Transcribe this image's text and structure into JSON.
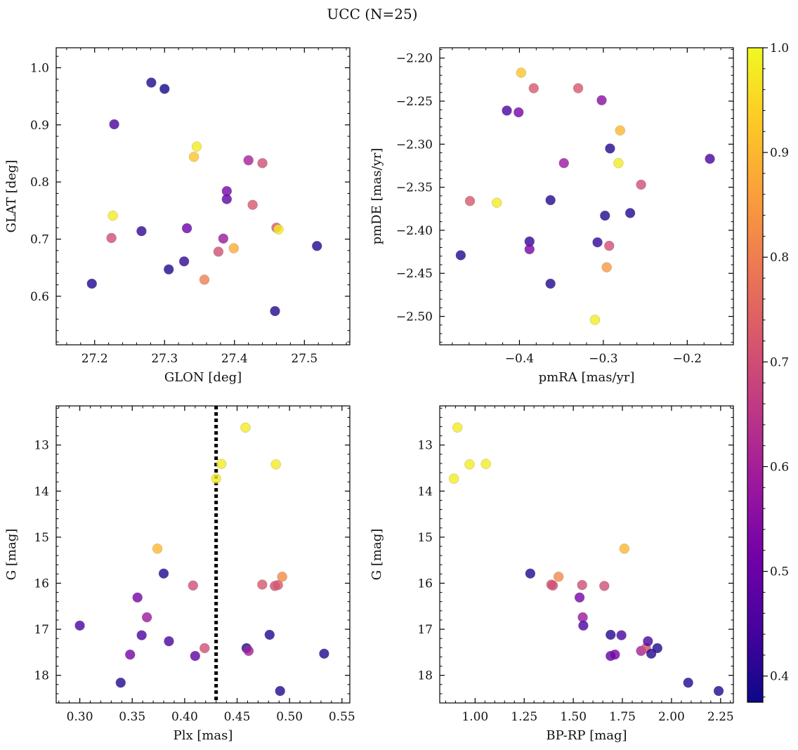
{
  "title": "UCC (N=25)",
  "colors": {
    "cmap": [
      "#0d0887",
      "#46039f",
      "#7201a8",
      "#9c179e",
      "#bd3786",
      "#d8576b",
      "#ed7953",
      "#fb9f3a",
      "#fdca26",
      "#f0f921"
    ],
    "point_alpha": 0.8,
    "point_edge": "#777777",
    "vline": "#000000"
  },
  "colorbar": {
    "range": [
      0.375,
      1.0
    ],
    "ticks": [
      0.4,
      0.5,
      0.6,
      0.7,
      0.8,
      0.9,
      1.0
    ],
    "tick_labels": [
      "0.4",
      "0.5",
      "0.6",
      "0.7",
      "0.8",
      "0.9",
      "1.0"
    ]
  },
  "chart_data": [
    {
      "type": "scatter",
      "xlabel": "GLON [deg]",
      "ylabel": "GLAT [deg]",
      "xlim": [
        27.145,
        27.565
      ],
      "ylim": [
        0.515,
        1.035
      ],
      "xticks": [
        27.2,
        27.3,
        27.4,
        27.5
      ],
      "xtick_labels": [
        "27.2",
        "27.3",
        "27.4",
        "27.5"
      ],
      "yticks": [
        0.6,
        0.7,
        0.8,
        0.9,
        1.0
      ],
      "ytick_labels": [
        "0.6",
        "0.7",
        "0.8",
        "0.9",
        "1.0"
      ],
      "y_inverted": false,
      "points": [
        {
          "x": 27.196,
          "y": 0.622,
          "c": 0.4
        },
        {
          "x": 27.224,
          "y": 0.702,
          "c": 0.7
        },
        {
          "x": 27.226,
          "y": 0.741,
          "c": 0.98
        },
        {
          "x": 27.228,
          "y": 0.901,
          "c": 0.45
        },
        {
          "x": 27.267,
          "y": 0.714,
          "c": 0.42
        },
        {
          "x": 27.281,
          "y": 0.974,
          "c": 0.4
        },
        {
          "x": 27.3,
          "y": 0.963,
          "c": 0.38
        },
        {
          "x": 27.306,
          "y": 0.647,
          "c": 0.4
        },
        {
          "x": 27.328,
          "y": 0.661,
          "c": 0.42
        },
        {
          "x": 27.332,
          "y": 0.719,
          "c": 0.5
        },
        {
          "x": 27.342,
          "y": 0.844,
          "c": 0.92
        },
        {
          "x": 27.346,
          "y": 0.862,
          "c": 0.98
        },
        {
          "x": 27.357,
          "y": 0.629,
          "c": 0.8
        },
        {
          "x": 27.377,
          "y": 0.678,
          "c": 0.7
        },
        {
          "x": 27.384,
          "y": 0.701,
          "c": 0.58
        },
        {
          "x": 27.389,
          "y": 0.784,
          "c": 0.52
        },
        {
          "x": 27.389,
          "y": 0.77,
          "c": 0.48
        },
        {
          "x": 27.399,
          "y": 0.684,
          "c": 0.88
        },
        {
          "x": 27.42,
          "y": 0.838,
          "c": 0.6
        },
        {
          "x": 27.426,
          "y": 0.76,
          "c": 0.72
        },
        {
          "x": 27.44,
          "y": 0.833,
          "c": 0.7
        },
        {
          "x": 27.458,
          "y": 0.574,
          "c": 0.4
        },
        {
          "x": 27.46,
          "y": 0.72,
          "c": 0.72
        },
        {
          "x": 27.463,
          "y": 0.717,
          "c": 0.98
        },
        {
          "x": 27.518,
          "y": 0.688,
          "c": 0.4
        }
      ]
    },
    {
      "type": "scatter",
      "xlabel": "pmRA [mas/yr]",
      "ylabel": "pmDE [mas/yr]",
      "xlim": [
        -0.495,
        -0.145
      ],
      "ylim": [
        -2.533,
        -2.188
      ],
      "xticks": [
        -0.4,
        -0.3,
        -0.2
      ],
      "xtick_labels": [
        "−0.4",
        "−0.3",
        "−0.2"
      ],
      "yticks": [
        -2.5,
        -2.45,
        -2.4,
        -2.35,
        -2.3,
        -2.25,
        -2.2
      ],
      "ytick_labels": [
        "−2.50",
        "−2.45",
        "−2.40",
        "−2.35",
        "−2.30",
        "−2.25",
        "−2.20"
      ],
      "y_inverted": false,
      "points": [
        {
          "x": -0.47,
          "y": -2.429,
          "c": 0.4
        },
        {
          "x": -0.459,
          "y": -2.366,
          "c": 0.72
        },
        {
          "x": -0.427,
          "y": -2.368,
          "c": 0.98
        },
        {
          "x": -0.415,
          "y": -2.261,
          "c": 0.45
        },
        {
          "x": -0.401,
          "y": -2.263,
          "c": 0.52
        },
        {
          "x": -0.398,
          "y": -2.217,
          "c": 0.92
        },
        {
          "x": -0.388,
          "y": -2.413,
          "c": 0.42
        },
        {
          "x": -0.388,
          "y": -2.422,
          "c": 0.52
        },
        {
          "x": -0.383,
          "y": -2.235,
          "c": 0.72
        },
        {
          "x": -0.363,
          "y": -2.365,
          "c": 0.4
        },
        {
          "x": -0.363,
          "y": -2.462,
          "c": 0.4
        },
        {
          "x": -0.347,
          "y": -2.322,
          "c": 0.58
        },
        {
          "x": -0.33,
          "y": -2.235,
          "c": 0.72
        },
        {
          "x": -0.31,
          "y": -2.504,
          "c": 0.98
        },
        {
          "x": -0.307,
          "y": -2.414,
          "c": 0.42
        },
        {
          "x": -0.302,
          "y": -2.249,
          "c": 0.55
        },
        {
          "x": -0.298,
          "y": -2.383,
          "c": 0.4
        },
        {
          "x": -0.296,
          "y": -2.443,
          "c": 0.85
        },
        {
          "x": -0.293,
          "y": -2.418,
          "c": 0.7
        },
        {
          "x": -0.292,
          "y": -2.305,
          "c": 0.4
        },
        {
          "x": -0.282,
          "y": -2.322,
          "c": 0.98
        },
        {
          "x": -0.28,
          "y": -2.284,
          "c": 0.9
        },
        {
          "x": -0.268,
          "y": -2.38,
          "c": 0.4
        },
        {
          "x": -0.255,
          "y": -2.347,
          "c": 0.7
        },
        {
          "x": -0.173,
          "y": -2.317,
          "c": 0.45
        }
      ]
    },
    {
      "type": "scatter",
      "xlabel": "Plx [mas]",
      "ylabel": "G [mag]",
      "xlim": [
        0.2775,
        0.5575
      ],
      "ylim": [
        18.6,
        12.15
      ],
      "xticks": [
        0.3,
        0.35,
        0.4,
        0.45,
        0.5,
        0.55
      ],
      "xtick_labels": [
        "0.30",
        "0.35",
        "0.40",
        "0.45",
        "0.50",
        "0.55"
      ],
      "yticks": [
        13,
        14,
        15,
        16,
        17,
        18
      ],
      "ytick_labels": [
        "13",
        "14",
        "15",
        "16",
        "17",
        "18"
      ],
      "y_inverted": true,
      "vline": {
        "x": 0.43
      },
      "points": [
        {
          "x": 0.3,
          "y": 16.92,
          "c": 0.45
        },
        {
          "x": 0.339,
          "y": 18.16,
          "c": 0.4
        },
        {
          "x": 0.348,
          "y": 17.55,
          "c": 0.52
        },
        {
          "x": 0.355,
          "y": 16.31,
          "c": 0.52
        },
        {
          "x": 0.359,
          "y": 17.13,
          "c": 0.45
        },
        {
          "x": 0.364,
          "y": 16.74,
          "c": 0.58
        },
        {
          "x": 0.374,
          "y": 15.25,
          "c": 0.9
        },
        {
          "x": 0.38,
          "y": 15.79,
          "c": 0.4
        },
        {
          "x": 0.385,
          "y": 17.26,
          "c": 0.45
        },
        {
          "x": 0.408,
          "y": 16.05,
          "c": 0.7
        },
        {
          "x": 0.41,
          "y": 17.58,
          "c": 0.48
        },
        {
          "x": 0.419,
          "y": 17.41,
          "c": 0.7
        },
        {
          "x": 0.43,
          "y": 13.73,
          "c": 0.98
        },
        {
          "x": 0.435,
          "y": 13.41,
          "c": 0.98
        },
        {
          "x": 0.458,
          "y": 12.62,
          "c": 0.98
        },
        {
          "x": 0.459,
          "y": 17.41,
          "c": 0.4
        },
        {
          "x": 0.461,
          "y": 17.47,
          "c": 0.6
        },
        {
          "x": 0.474,
          "y": 16.03,
          "c": 0.72
        },
        {
          "x": 0.481,
          "y": 17.12,
          "c": 0.4
        },
        {
          "x": 0.486,
          "y": 16.06,
          "c": 0.7
        },
        {
          "x": 0.487,
          "y": 13.42,
          "c": 0.98
        },
        {
          "x": 0.489,
          "y": 16.04,
          "c": 0.72
        },
        {
          "x": 0.491,
          "y": 18.34,
          "c": 0.4
        },
        {
          "x": 0.493,
          "y": 15.86,
          "c": 0.82
        },
        {
          "x": 0.533,
          "y": 17.53,
          "c": 0.4
        }
      ]
    },
    {
      "type": "scatter",
      "xlabel": "BP-RP [mag]",
      "ylabel": "G [mag]",
      "xlim": [
        0.82,
        2.315
      ],
      "ylim": [
        18.6,
        12.15
      ],
      "xticks": [
        1.0,
        1.25,
        1.5,
        1.75,
        2.0,
        2.25
      ],
      "xtick_labels": [
        "1.00",
        "1.25",
        "1.50",
        "1.75",
        "2.00",
        "2.25"
      ],
      "yticks": [
        13,
        14,
        15,
        16,
        17,
        18
      ],
      "ytick_labels": [
        "13",
        "14",
        "15",
        "16",
        "17",
        "18"
      ],
      "y_inverted": true,
      "points": [
        {
          "x": 0.892,
          "y": 13.73,
          "c": 0.98
        },
        {
          "x": 0.91,
          "y": 12.62,
          "c": 0.98
        },
        {
          "x": 0.972,
          "y": 13.42,
          "c": 0.98
        },
        {
          "x": 1.055,
          "y": 13.41,
          "c": 0.98
        },
        {
          "x": 1.281,
          "y": 15.79,
          "c": 0.4
        },
        {
          "x": 1.388,
          "y": 16.03,
          "c": 0.72
        },
        {
          "x": 1.396,
          "y": 16.05,
          "c": 0.7
        },
        {
          "x": 1.425,
          "y": 15.86,
          "c": 0.82
        },
        {
          "x": 1.532,
          "y": 16.31,
          "c": 0.52
        },
        {
          "x": 1.545,
          "y": 16.04,
          "c": 0.7
        },
        {
          "x": 1.548,
          "y": 16.74,
          "c": 0.58
        },
        {
          "x": 1.551,
          "y": 16.92,
          "c": 0.45
        },
        {
          "x": 1.658,
          "y": 16.06,
          "c": 0.7
        },
        {
          "x": 1.69,
          "y": 17.12,
          "c": 0.4
        },
        {
          "x": 1.69,
          "y": 17.58,
          "c": 0.48
        },
        {
          "x": 1.712,
          "y": 17.55,
          "c": 0.52
        },
        {
          "x": 1.745,
          "y": 17.13,
          "c": 0.45
        },
        {
          "x": 1.76,
          "y": 15.25,
          "c": 0.9
        },
        {
          "x": 1.845,
          "y": 17.47,
          "c": 0.6
        },
        {
          "x": 1.87,
          "y": 17.41,
          "c": 0.7
        },
        {
          "x": 1.88,
          "y": 17.26,
          "c": 0.45
        },
        {
          "x": 1.897,
          "y": 17.53,
          "c": 0.4
        },
        {
          "x": 1.928,
          "y": 17.41,
          "c": 0.4
        },
        {
          "x": 2.085,
          "y": 18.16,
          "c": 0.4
        },
        {
          "x": 2.24,
          "y": 18.34,
          "c": 0.4
        }
      ]
    }
  ]
}
